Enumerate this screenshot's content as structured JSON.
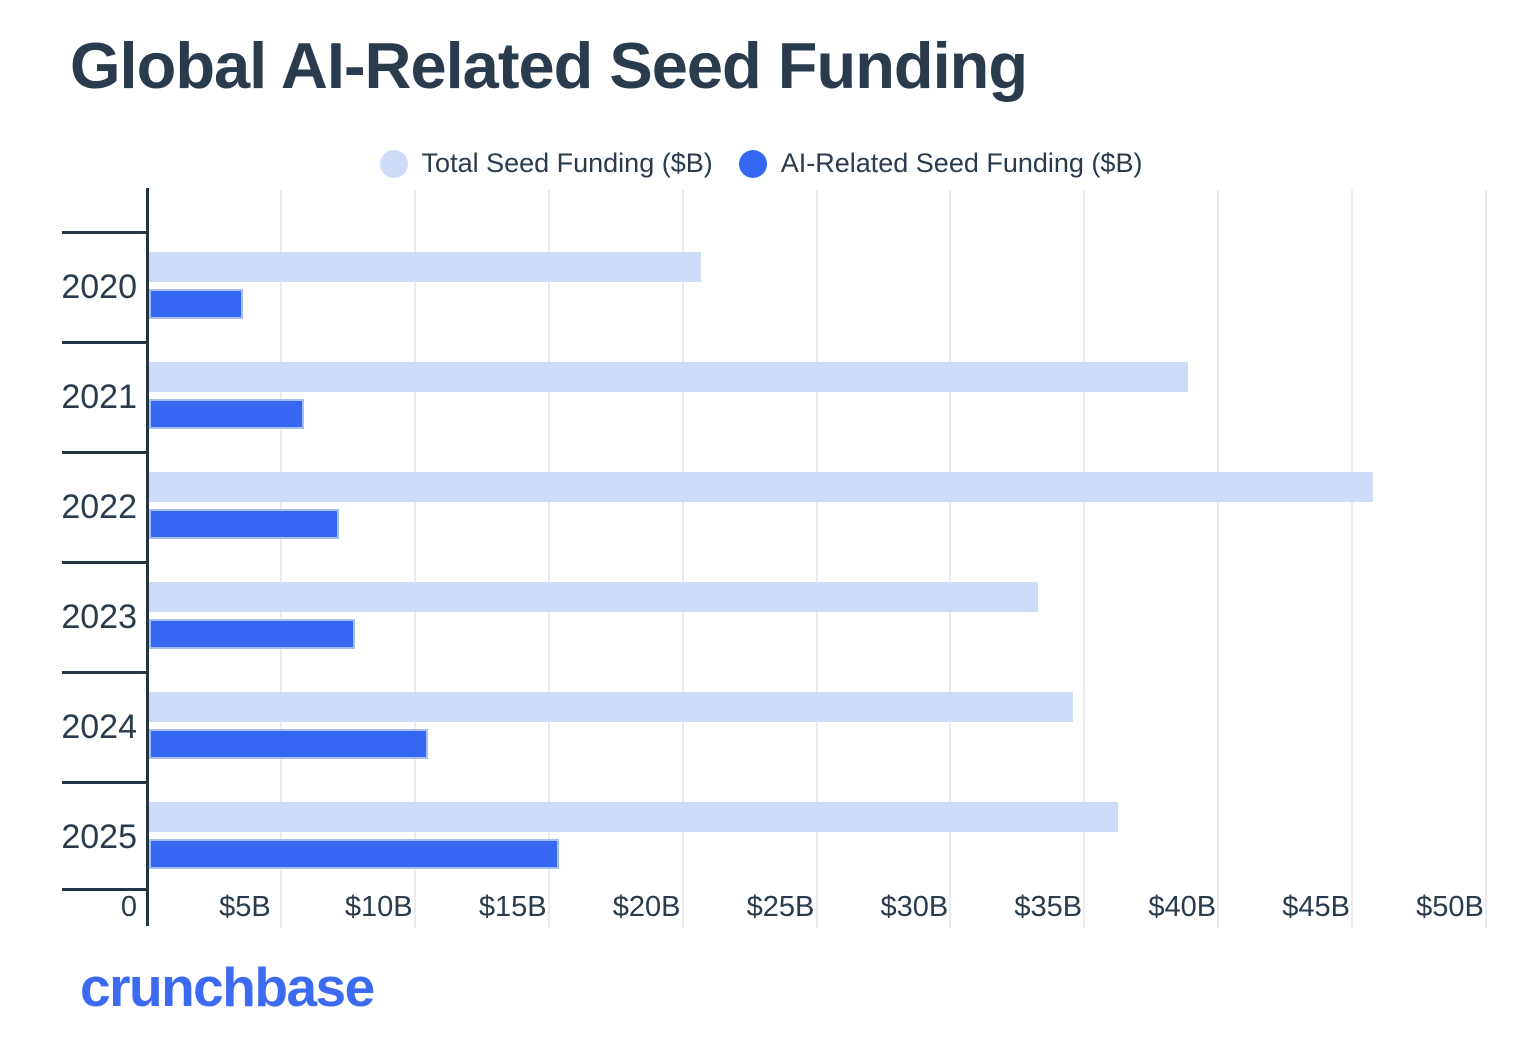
{
  "title": "Global AI-Related Seed Funding",
  "legend": [
    {
      "label": "Total Seed Funding ($B)",
      "color": "#CEDCF9"
    },
    {
      "label": "AI-Related Seed Funding ($B)",
      "color": "#3468F2"
    }
  ],
  "footer": {
    "logo_text": "crunchbase"
  },
  "colors": {
    "text_navy": "#2A3B4D",
    "axis": "#243443",
    "gridline": "#EBEBEE",
    "total_bar": "#CEDCF9",
    "ai_bar": "#3468F2",
    "logo_blue": "#3C6BF2",
    "background": "#FFFFFF"
  },
  "chart_data": {
    "type": "bar",
    "orientation": "horizontal",
    "title": "Global AI-Related Seed Funding",
    "categories": [
      "2020",
      "2021",
      "2022",
      "2023",
      "2024",
      "2025"
    ],
    "series": [
      {
        "name": "Total Seed Funding ($B)",
        "color": "#CEDCF9",
        "values": [
          20.6,
          38.8,
          45.7,
          33.2,
          34.5,
          36.2
        ]
      },
      {
        "name": "AI-Related Seed Funding ($B)",
        "color": "#3468F2",
        "values": [
          3.5,
          5.8,
          7.1,
          7.7,
          10.4,
          15.3
        ]
      }
    ],
    "x_axis": {
      "min": 0,
      "max": 50,
      "tick_interval": 5,
      "unit": "$B",
      "tick_labels": [
        "0",
        "$5B",
        "$10B",
        "$15B",
        "$20B",
        "$25B",
        "$30B",
        "$35B",
        "$40B",
        "$45B",
        "$50B"
      ]
    },
    "y_axis_label": "",
    "xlabel": "",
    "ylabel": "",
    "grid": true,
    "legend_position": "top"
  }
}
